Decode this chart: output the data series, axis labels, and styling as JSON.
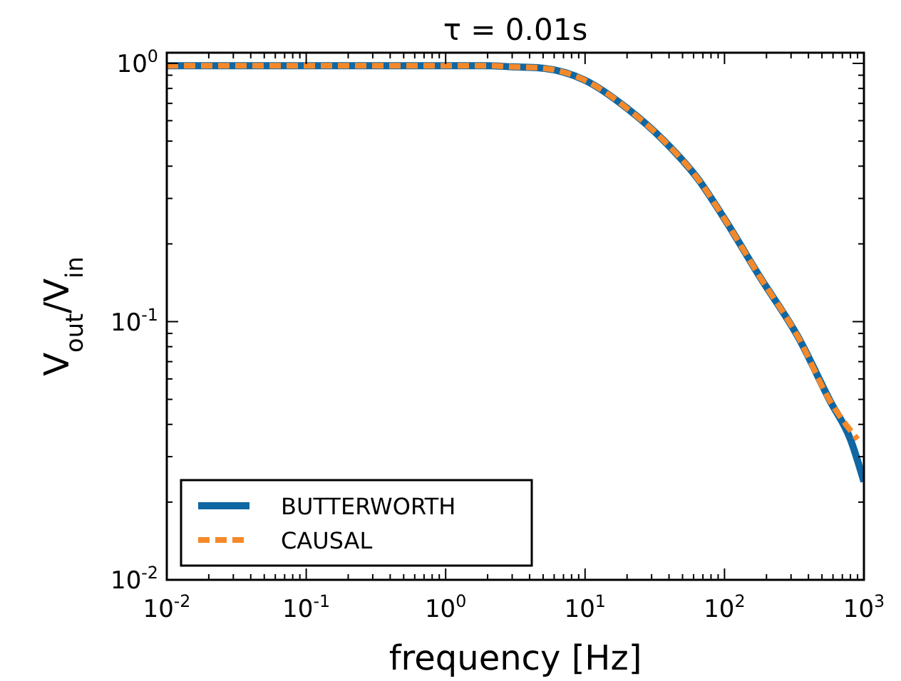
{
  "chart_data": {
    "type": "line",
    "title": "τ = 0.01s",
    "xlabel": "frequency [Hz]",
    "ylabel": "V$_{out}$/V$_{in}$",
    "log": "xy",
    "legend": "bottom left",
    "xlim": [
      0.01,
      1000
    ],
    "ylim": [
      0.01,
      1.1
    ],
    "xticks": [
      {
        "value": 0.01,
        "label": "10$^{-2}$"
      },
      {
        "value": 0.02,
        "label": null
      },
      {
        "value": 0.03,
        "label": null
      },
      {
        "value": 0.04,
        "label": null
      },
      {
        "value": 0.05,
        "label": null
      },
      {
        "value": 0.06,
        "label": null
      },
      {
        "value": 0.07,
        "label": null
      },
      {
        "value": 0.08,
        "label": null
      },
      {
        "value": 0.09,
        "label": null
      },
      {
        "value": 0.1,
        "label": "10$^{-1}$"
      },
      {
        "value": 0.2,
        "label": null
      },
      {
        "value": 0.3,
        "label": null
      },
      {
        "value": 0.4,
        "label": null
      },
      {
        "value": 0.5,
        "label": null
      },
      {
        "value": 0.6,
        "label": null
      },
      {
        "value": 0.7,
        "label": null
      },
      {
        "value": 0.8,
        "label": null
      },
      {
        "value": 0.9,
        "label": null
      },
      {
        "value": 1,
        "label": "10$^{0}$"
      },
      {
        "value": 2,
        "label": null
      },
      {
        "value": 3,
        "label": null
      },
      {
        "value": 4,
        "label": null
      },
      {
        "value": 5,
        "label": null
      },
      {
        "value": 6,
        "label": null
      },
      {
        "value": 7,
        "label": null
      },
      {
        "value": 8,
        "label": null
      },
      {
        "value": 9,
        "label": null
      },
      {
        "value": 10,
        "label": "10$^{1}$"
      },
      {
        "value": 20,
        "label": null
      },
      {
        "value": 30,
        "label": null
      },
      {
        "value": 40,
        "label": null
      },
      {
        "value": 50,
        "label": null
      },
      {
        "value": 60,
        "label": null
      },
      {
        "value": 70,
        "label": null
      },
      {
        "value": 80,
        "label": null
      },
      {
        "value": 90,
        "label": null
      },
      {
        "value": 100,
        "label": "10$^{2}$"
      },
      {
        "value": 200,
        "label": null
      },
      {
        "value": 300,
        "label": null
      },
      {
        "value": 400,
        "label": null
      },
      {
        "value": 500,
        "label": null
      },
      {
        "value": 600,
        "label": null
      },
      {
        "value": 700,
        "label": null
      },
      {
        "value": 800,
        "label": null
      },
      {
        "value": 900,
        "label": null
      },
      {
        "value": 1000,
        "label": "10$^{3}$"
      }
    ],
    "yticks": [
      {
        "value": 0.01,
        "label": "10$^{-2}$"
      },
      {
        "value": 0.02,
        "label": null
      },
      {
        "value": 0.03,
        "label": null
      },
      {
        "value": 0.04,
        "label": null
      },
      {
        "value": 0.05,
        "label": null
      },
      {
        "value": 0.06,
        "label": null
      },
      {
        "value": 0.07,
        "label": null
      },
      {
        "value": 0.08,
        "label": null
      },
      {
        "value": 0.09,
        "label": null
      },
      {
        "value": 0.1,
        "label": "10$^{-1}$"
      },
      {
        "value": 0.2,
        "label": null
      },
      {
        "value": 0.3,
        "label": null
      },
      {
        "value": 0.4,
        "label": null
      },
      {
        "value": 0.5,
        "label": null
      },
      {
        "value": 0.6,
        "label": null
      },
      {
        "value": 0.7,
        "label": null
      },
      {
        "value": 0.8,
        "label": null
      },
      {
        "value": 0.9,
        "label": null
      },
      {
        "value": 1,
        "label": "10$^{0}$"
      }
    ],
    "series": [
      {
        "name": "BUTTERWORTH",
        "color": "#0f67a3",
        "line_style": "solid",
        "x": [
          0.01,
          0.1,
          1,
          2,
          3,
          4.8,
          10,
          20,
          37,
          65,
          100,
          178,
          338,
          575,
          800,
          1000
        ],
        "values": [
          0.98,
          0.98,
          0.98,
          0.98,
          0.97,
          0.96,
          0.86,
          0.67,
          0.5,
          0.355,
          0.25,
          0.15,
          0.087,
          0.049,
          0.035,
          0.024
        ]
      },
      {
        "name": "CAUSAL",
        "color": "#f5892a",
        "line_style": "dashed",
        "x": [
          0.01,
          0.1,
          1,
          2,
          3,
          4.8,
          10,
          20,
          37,
          65,
          100,
          178,
          338,
          575,
          900
        ],
        "values": [
          0.98,
          0.98,
          0.98,
          0.98,
          0.97,
          0.96,
          0.86,
          0.67,
          0.5,
          0.355,
          0.25,
          0.15,
          0.087,
          0.049,
          0.035
        ]
      }
    ]
  }
}
